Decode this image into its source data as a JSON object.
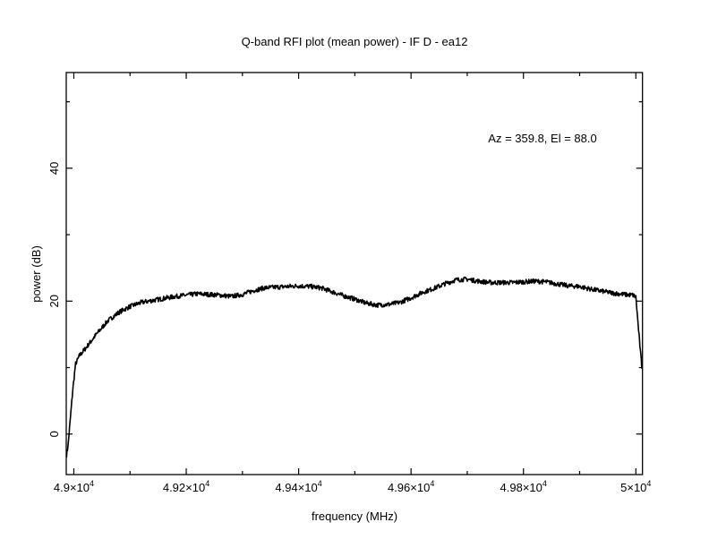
{
  "chart_data": {
    "type": "line",
    "title": "Q-band RFI plot (mean power) - IF D - ea12",
    "xlabel": "frequency (MHz)",
    "ylabel": "power (dB)",
    "annotation": "Az = 359.8, El = 88.0",
    "xlim": [
      48986.5,
      50011.8
    ],
    "ylim": [
      -6.1,
      54.4
    ],
    "grid": false,
    "x_ticks": [
      {
        "value": 49000,
        "label": "4.9×10",
        "exp": "4"
      },
      {
        "value": 49200,
        "label": "4.92×10",
        "exp": "4"
      },
      {
        "value": 49400,
        "label": "4.94×10",
        "exp": "4"
      },
      {
        "value": 49600,
        "label": "4.96×10",
        "exp": "4"
      },
      {
        "value": 49800,
        "label": "4.98×10",
        "exp": "4"
      },
      {
        "value": 50000,
        "label": "5×10",
        "exp": "4"
      }
    ],
    "y_ticks": [
      {
        "value": 0,
        "label": "0"
      },
      {
        "value": 20,
        "label": "20"
      },
      {
        "value": 40,
        "label": "40"
      }
    ],
    "series": [
      {
        "name": "mean power",
        "color": "#000000",
        "x": [
          48987,
          48990,
          48994,
          48998,
          49003,
          49010,
          49020,
          49040,
          49060,
          49080,
          49100,
          49120,
          49140,
          49160,
          49180,
          49200,
          49220,
          49240,
          49260,
          49280,
          49300,
          49320,
          49340,
          49360,
          49380,
          49400,
          49420,
          49440,
          49460,
          49480,
          49500,
          49520,
          49540,
          49560,
          49580,
          49600,
          49620,
          49640,
          49660,
          49680,
          49700,
          49720,
          49740,
          49760,
          49780,
          49800,
          49820,
          49840,
          49860,
          49880,
          49900,
          49920,
          49940,
          49960,
          49980,
          49995,
          50000,
          50004,
          50008,
          50011
        ],
        "y": [
          -3.2,
          -1.5,
          2.5,
          6.5,
          10.5,
          11.8,
          12.8,
          15.0,
          17.0,
          18.3,
          19.2,
          19.8,
          20.1,
          20.4,
          20.7,
          20.9,
          21.1,
          21.0,
          20.9,
          20.7,
          21.0,
          21.6,
          22.0,
          22.1,
          22.2,
          22.3,
          22.2,
          22.0,
          21.4,
          20.8,
          20.3,
          19.7,
          19.4,
          19.5,
          19.8,
          20.5,
          21.3,
          21.9,
          22.6,
          23.2,
          23.3,
          23.0,
          22.8,
          22.8,
          22.8,
          22.9,
          23.0,
          22.9,
          22.6,
          22.3,
          22.2,
          21.8,
          21.5,
          21.2,
          21.0,
          20.9,
          20.6,
          16.5,
          12.5,
          9.8
        ]
      }
    ]
  }
}
